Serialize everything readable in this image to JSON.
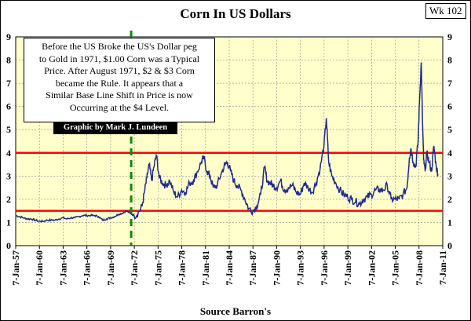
{
  "badge": "Wk 102",
  "chart_data": {
    "type": "line",
    "title": "Corn In US Dollars",
    "xlabel": "Source Barron's",
    "ylabel": "",
    "ylim": [
      0,
      9
    ],
    "yticks": [
      0,
      1,
      2,
      3,
      4,
      5,
      6,
      7,
      8,
      9
    ],
    "xlim_year": [
      1957.02,
      2011.02
    ],
    "xtick_labels": [
      "7-Jan-57",
      "7-Jan-60",
      "7-Jan-63",
      "7-Jan-66",
      "7-Jan-69",
      "7-Jan-72",
      "7-Jan-75",
      "7-Jan-78",
      "7-Jan-81",
      "7-Jan-84",
      "7-Jan-87",
      "7-Jan-90",
      "7-Jan-93",
      "7-Jan-96",
      "7-Jan-99",
      "7-Jan-02",
      "7-Jan-05",
      "7-Jan-08",
      "7-Jan-11"
    ],
    "xtick_years": [
      1957.02,
      1960.02,
      1963.02,
      1966.02,
      1969.02,
      1972.02,
      1975.02,
      1978.02,
      1981.02,
      1984.02,
      1987.02,
      1990.02,
      1993.02,
      1996.02,
      1999.02,
      2002.02,
      2005.02,
      2008.02,
      2011.02
    ],
    "grid": true,
    "background": "#ffffcc",
    "line_color": "#1f2a8f",
    "reference_lines": [
      {
        "y": 4.0,
        "color": "#ff0000"
      },
      {
        "y": 1.5,
        "color": "#ff0000"
      }
    ],
    "vertical_marker": {
      "x": 1971.62,
      "color": "#0a8a0a",
      "style": "dashed"
    },
    "series": [
      {
        "x": [
          1957.0,
          1957.5,
          1958.0,
          1958.5,
          1959.0,
          1959.5,
          1960.0,
          1960.5,
          1961.0,
          1961.5,
          1962.0,
          1962.5,
          1963.0,
          1963.5,
          1964.0,
          1964.5,
          1965.0,
          1965.5,
          1966.0,
          1966.5,
          1967.0,
          1967.5,
          1968.0,
          1968.5,
          1969.0,
          1969.5,
          1970.0,
          1970.5,
          1971.0,
          1971.5,
          1972.0,
          1972.5,
          1973.0,
          1973.3,
          1973.6,
          1973.9,
          1974.2,
          1974.5,
          1974.8,
          1975.2,
          1975.6,
          1976.0,
          1976.5,
          1977.0,
          1977.5,
          1978.0,
          1978.5,
          1979.0,
          1979.5,
          1980.0,
          1980.5,
          1980.8,
          1981.2,
          1981.6,
          1982.0,
          1982.5,
          1983.0,
          1983.5,
          1983.8,
          1984.2,
          1984.6,
          1985.0,
          1985.5,
          1986.0,
          1986.5,
          1987.0,
          1987.5,
          1988.0,
          1988.5,
          1988.8,
          1989.2,
          1989.6,
          1990.0,
          1990.5,
          1991.0,
          1991.5,
          1992.0,
          1992.5,
          1993.0,
          1993.5,
          1994.0,
          1994.5,
          1995.0,
          1995.5,
          1996.0,
          1996.3,
          1996.6,
          1997.0,
          1997.5,
          1998.0,
          1998.5,
          1999.0,
          1999.5,
          2000.0,
          2000.5,
          2001.0,
          2001.5,
          2002.0,
          2002.5,
          2003.0,
          2003.5,
          2004.0,
          2004.5,
          2005.0,
          2005.5,
          2006.0,
          2006.5,
          2006.8,
          2007.0,
          2007.3,
          2007.6,
          2007.9,
          2008.1,
          2008.3,
          2008.45,
          2008.6,
          2008.8,
          2009.0,
          2009.3,
          2009.6,
          2009.9,
          2010.2,
          2010.4
        ],
        "y": [
          1.3,
          1.25,
          1.2,
          1.15,
          1.15,
          1.1,
          1.05,
          1.05,
          1.1,
          1.1,
          1.1,
          1.15,
          1.2,
          1.15,
          1.2,
          1.2,
          1.25,
          1.3,
          1.3,
          1.3,
          1.3,
          1.25,
          1.1,
          1.15,
          1.2,
          1.25,
          1.35,
          1.4,
          1.5,
          1.4,
          1.3,
          1.4,
          1.7,
          2.3,
          2.9,
          3.5,
          2.8,
          3.4,
          3.9,
          2.9,
          2.7,
          2.6,
          2.8,
          2.3,
          2.1,
          2.4,
          2.3,
          2.7,
          2.8,
          3.2,
          3.6,
          3.8,
          3.2,
          3.0,
          2.5,
          2.6,
          3.1,
          3.5,
          3.6,
          3.2,
          2.8,
          2.6,
          2.4,
          2.0,
          1.6,
          1.5,
          1.7,
          2.2,
          3.4,
          2.8,
          2.7,
          2.6,
          2.5,
          2.8,
          2.4,
          2.5,
          2.6,
          2.3,
          2.2,
          2.7,
          2.5,
          2.3,
          2.7,
          3.3,
          4.3,
          5.5,
          3.6,
          3.0,
          2.7,
          2.4,
          2.2,
          2.1,
          2.0,
          1.9,
          1.8,
          2.0,
          2.1,
          2.2,
          2.4,
          2.4,
          2.4,
          2.6,
          2.0,
          2.0,
          2.0,
          2.2,
          2.5,
          3.8,
          4.2,
          3.6,
          3.4,
          4.5,
          6.4,
          7.9,
          5.5,
          3.7,
          3.2,
          4.0,
          3.6,
          3.2,
          4.3,
          3.4,
          3.1
        ]
      }
    ]
  },
  "note": {
    "lines": [
      "Before the US Broke the US's Dollar peg",
      "to Gold in 1971, $1.00 Corn was a Typical",
      "Price. After August 1971, $2 & $3 Corn",
      "became the Rule.   It appears that a",
      "Similar Base Line Shift in Price is now",
      "Occurring at the $4 Level."
    ],
    "credit": "Graphic by Mark J. Lundeen"
  }
}
